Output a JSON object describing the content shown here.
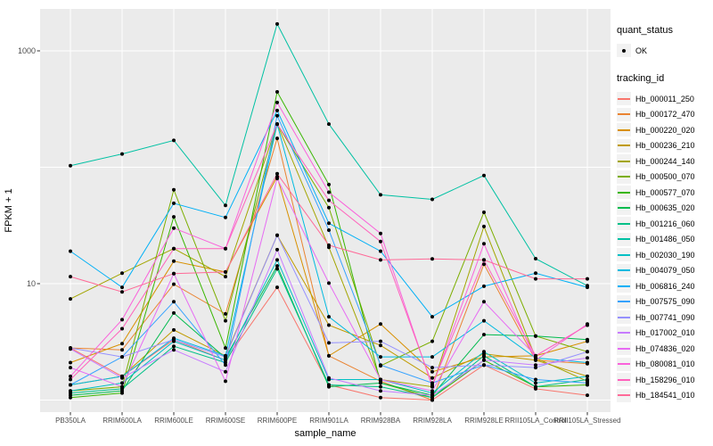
{
  "figure": {
    "background": "#FFFFFF",
    "panel_background": "#EBEBEB",
    "grid_color": "#FFFFFF",
    "point_color": "#000000",
    "axis_text_color": "#4D4D4D",
    "axis_title_color": "#000000",
    "legend_key_background": "#F2F2F2"
  },
  "chart_data": {
    "type": "line",
    "title": "",
    "xlabel": "sample_name",
    "ylabel": "FPKM + 1",
    "y_scale": "log10",
    "y_tick_labels": [
      "1000",
      "10"
    ],
    "y_tick_values": [
      1000,
      10
    ],
    "y_gridline_values": [
      1,
      10,
      100,
      1000
    ],
    "ylim": [
      0.79,
      2290
    ],
    "legend_position": "right",
    "grid": true,
    "categories": [
      "PB350LA",
      "RRIM600LA",
      "RRIM600LE",
      "RRIM600SE",
      "RRIM600PE",
      "RRIM901LA",
      "RRIM928BA",
      "RRIM928LA",
      "RRIM928LE",
      "RRII105LA_Control",
      "RRII105LA_Stressed"
    ],
    "series": [
      {
        "name": "Hb_000011_250",
        "color": "#F8766D",
        "quant_status": "OK",
        "values": [
          2.8,
          1.6,
          3.3,
          2.2,
          9.3,
          1.35,
          1.05,
          1.0,
          2.0,
          1.25,
          1.1
        ]
      },
      {
        "name": "Hb_000172_470",
        "color": "#EA8331",
        "quant_status": "OK",
        "values": [
          2.8,
          2.7,
          9.9,
          5.5,
          177,
          2.4,
          1.45,
          1.0,
          14.7,
          2.2,
          2.05
        ]
      },
      {
        "name": "Hb_000220_020",
        "color": "#D89000",
        "quant_status": "OK",
        "values": [
          2.1,
          3.05,
          15.6,
          12.6,
          83,
          2.4,
          4.5,
          1.75,
          2.35,
          2.4,
          3.2
        ]
      },
      {
        "name": "Hb_000236_210",
        "color": "#C09B00",
        "quant_status": "OK",
        "values": [
          1.35,
          1.6,
          4.0,
          2.4,
          26,
          4.4,
          2.95,
          1.55,
          2.5,
          2.2,
          1.6
        ]
      },
      {
        "name": "Hb_000244_140",
        "color": "#A3A500",
        "quant_status": "OK",
        "values": [
          7.4,
          12.3,
          20,
          11.5,
          235,
          20.5,
          1.5,
          1.3,
          31,
          2.3,
          1.45
        ]
      },
      {
        "name": "Hb_000500_070",
        "color": "#7CAE00",
        "quant_status": "OK",
        "values": [
          1.2,
          1.3,
          64,
          4.8,
          235,
          45,
          1.97,
          3.2,
          41,
          3.55,
          2.6
        ]
      },
      {
        "name": "Hb_000577_070",
        "color": "#39B600",
        "quant_status": "OK",
        "values": [
          1.05,
          1.15,
          37.5,
          2.8,
          444,
          71,
          1.4,
          1.05,
          2.2,
          1.3,
          1.35
        ]
      },
      {
        "name": "Hb_000635_020",
        "color": "#00BB4E",
        "quant_status": "OK",
        "values": [
          1.1,
          1.2,
          5.6,
          2.3,
          14.2,
          1.3,
          1.4,
          1.1,
          3.65,
          3.55,
          3.3
        ]
      },
      {
        "name": "Hb_001216_060",
        "color": "#00C087",
        "quant_status": "OK",
        "values": [
          1.15,
          1.25,
          2.9,
          2.1,
          13.4,
          1.35,
          1.3,
          1.05,
          2.4,
          1.3,
          1.5
        ]
      },
      {
        "name": "Hb_001486_050",
        "color": "#00C1A3",
        "quant_status": "OK",
        "values": [
          103,
          130,
          170,
          47,
          1700,
          235,
          58,
          53,
          85,
          16.4,
          9.6
        ]
      },
      {
        "name": "Hb_002030_190",
        "color": "#00BFC4",
        "quant_status": "OK",
        "values": [
          1.2,
          1.4,
          3.2,
          2.2,
          16,
          1.5,
          1.5,
          1.15,
          2.6,
          1.4,
          1.6
        ]
      },
      {
        "name": "Hb_004079_050",
        "color": "#00BAE0",
        "quant_status": "OK",
        "values": [
          1.35,
          1.6,
          3.4,
          2.4,
          235,
          5.2,
          2.35,
          2.35,
          4.8,
          2.3,
          2.1
        ]
      },
      {
        "name": "Hb_006816_240",
        "color": "#00B0F6",
        "quant_status": "OK",
        "values": [
          19,
          9.3,
          49,
          37,
          307,
          33,
          19,
          5.2,
          9.5,
          12.3,
          9.3
        ]
      },
      {
        "name": "Hb_007575_090",
        "color": "#35A2FF",
        "quant_status": "OK",
        "values": [
          1.35,
          2.35,
          7.0,
          2.0,
          277,
          28.8,
          2.0,
          1.4,
          2.0,
          1.5,
          1.4
        ]
      },
      {
        "name": "Hb_007741_090",
        "color": "#9590FF",
        "quant_status": "OK",
        "values": [
          2.8,
          2.35,
          3.3,
          2.35,
          26,
          3.1,
          3.2,
          1.9,
          2.0,
          1.9,
          2.6
        ]
      },
      {
        "name": "Hb_017002_010",
        "color": "#C77CFF",
        "quant_status": "OK",
        "values": [
          2.75,
          1.55,
          2.7,
          1.75,
          19.6,
          1.55,
          1.2,
          1.1,
          2.2,
          2.0,
          2.3
        ]
      },
      {
        "name": "Hb_074836_020",
        "color": "#E76BF3",
        "quant_status": "OK",
        "values": [
          1.9,
          1.3,
          12.2,
          1.45,
          80,
          10.1,
          1.5,
          1.2,
          7.0,
          2.4,
          4.4
        ]
      },
      {
        "name": "Hb_080081_010",
        "color": "#FA62DB",
        "quant_status": "OK",
        "values": [
          1.6,
          4.9,
          30,
          20,
          360,
          61,
          27,
          1.3,
          22,
          2.2,
          4.5
        ]
      },
      {
        "name": "Hb_158296_010",
        "color": "#FF62BC",
        "quant_status": "OK",
        "values": [
          1.5,
          4.1,
          20,
          20,
          235,
          52,
          23,
          1.35,
          16,
          2.4,
          4.4
        ]
      },
      {
        "name": "Hb_184541_010",
        "color": "#FF6A98",
        "quant_status": "OK",
        "values": [
          11.5,
          8.5,
          12.2,
          12.6,
          88,
          21.4,
          16,
          16.3,
          16,
          11,
          11
        ]
      }
    ]
  },
  "legend": {
    "quant_status_title": "quant_status",
    "quant_status_items": [
      {
        "label": "OK",
        "shape": "point",
        "color": "#000000"
      }
    ],
    "tracking_id_title": "tracking_id"
  }
}
